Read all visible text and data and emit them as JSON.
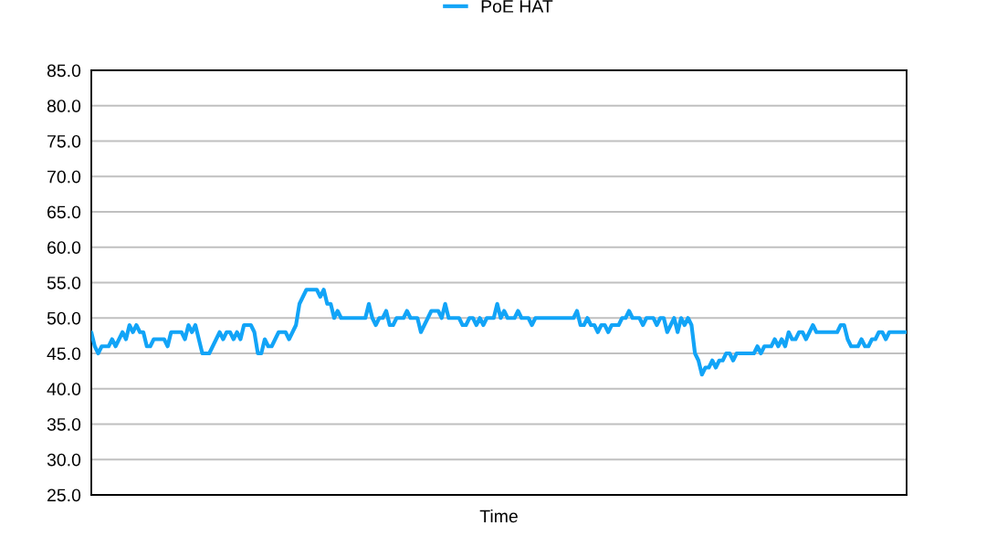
{
  "chart_data": {
    "type": "line",
    "xlabel": "Time",
    "categories": [
      null,
      null,
      null,
      null,
      null,
      null,
      null,
      null,
      null,
      null,
      null,
      null,
      null,
      null,
      null,
      null,
      null,
      null,
      null,
      null,
      null,
      null,
      null,
      null,
      null,
      null,
      null,
      null,
      null,
      null,
      null,
      null,
      null,
      null,
      null,
      null,
      null,
      null,
      null,
      null,
      null,
      null,
      null,
      null,
      null,
      null,
      null,
      null,
      null,
      null,
      null,
      null,
      null,
      null,
      null,
      null,
      null,
      null,
      null,
      null,
      null,
      null,
      null,
      null,
      null,
      null,
      null,
      null,
      null,
      null,
      null,
      null,
      null,
      null,
      null,
      null,
      null,
      null,
      null,
      null,
      null,
      null,
      null,
      null,
      null,
      null,
      null,
      null,
      null,
      null,
      null,
      null,
      null,
      null,
      null,
      null,
      null,
      null,
      null,
      null,
      null,
      null,
      null,
      null,
      null,
      null,
      null,
      null,
      null,
      null,
      null,
      null,
      null,
      null,
      null,
      null,
      null,
      null,
      null,
      null,
      null,
      null,
      null,
      null,
      null,
      null,
      null,
      null,
      null,
      null,
      null,
      null,
      null,
      null,
      null,
      null,
      null,
      null,
      null,
      null,
      null,
      null,
      null,
      null,
      null,
      null,
      null,
      null,
      null,
      null,
      null,
      null,
      null,
      null,
      null,
      null,
      null,
      null,
      null,
      null,
      null,
      null,
      null,
      null,
      null,
      null,
      null,
      null,
      null,
      null,
      null,
      null,
      null,
      null,
      null,
      null,
      null,
      null,
      null,
      null,
      null,
      null,
      null,
      null,
      null,
      null,
      null,
      null,
      null,
      null,
      null,
      null,
      null,
      null,
      null,
      null,
      null,
      null,
      null,
      null,
      null,
      null,
      null,
      null,
      null,
      null,
      null,
      null,
      null,
      null,
      null,
      null,
      null,
      null,
      null,
      null,
      null,
      null,
      null,
      null,
      null,
      null,
      null,
      null,
      null,
      null,
      null,
      null,
      null,
      null,
      null,
      null,
      null,
      null,
      null,
      null
    ],
    "series": [
      {
        "name": "PoE HAT",
        "color": "#12a4f7",
        "values": [
          48,
          46,
          45,
          46,
          46,
          46,
          47,
          46,
          47,
          48,
          47,
          49,
          48,
          49,
          48,
          48,
          46,
          46,
          47,
          47,
          47,
          47,
          46,
          48,
          48,
          48,
          48,
          47,
          49,
          48,
          49,
          47,
          45,
          45,
          45,
          46,
          47,
          48,
          47,
          48,
          48,
          47,
          48,
          47,
          49,
          49,
          49,
          48,
          45,
          45,
          47,
          46,
          46,
          47,
          48,
          48,
          48,
          47,
          48,
          49,
          52,
          53,
          54,
          54,
          54,
          54,
          53,
          54,
          52,
          52,
          50,
          51,
          50,
          50,
          50,
          50,
          50,
          50,
          50,
          50,
          52,
          50,
          49,
          50,
          50,
          51,
          49,
          49,
          50,
          50,
          50,
          51,
          50,
          50,
          50,
          48,
          49,
          50,
          51,
          51,
          51,
          50,
          52,
          50,
          50,
          50,
          50,
          49,
          49,
          50,
          50,
          49,
          50,
          49,
          50,
          50,
          50,
          52,
          50,
          51,
          50,
          50,
          50,
          51,
          50,
          50,
          50,
          49,
          50,
          50,
          50,
          50,
          50,
          50,
          50,
          50,
          50,
          50,
          50,
          50,
          51,
          49,
          49,
          50,
          49,
          49,
          48,
          49,
          49,
          48,
          49,
          49,
          49,
          50,
          50,
          51,
          50,
          50,
          50,
          49,
          50,
          50,
          50,
          49,
          50,
          50,
          48,
          49,
          50,
          48,
          50,
          49,
          50,
          49,
          45,
          44,
          42,
          43,
          43,
          44,
          43,
          44,
          44,
          45,
          45,
          44,
          45,
          45,
          45,
          45,
          45,
          45,
          46,
          45,
          46,
          46,
          46,
          47,
          46,
          47,
          46,
          48,
          47,
          47,
          48,
          48,
          47,
          48,
          49,
          48,
          48,
          48,
          48,
          48,
          48,
          48,
          49,
          49,
          47,
          46,
          46,
          46,
          47,
          46,
          46,
          47,
          47,
          48,
          48,
          47,
          48,
          48,
          48,
          48,
          48,
          48
        ]
      }
    ],
    "ylim": [
      25,
      85
    ],
    "yticks": [
      {
        "value": 25,
        "label": "25.0"
      },
      {
        "value": 30,
        "label": "30.0"
      },
      {
        "value": 35,
        "label": "35.0"
      },
      {
        "value": 40,
        "label": "40.0"
      },
      {
        "value": 45,
        "label": "45.0"
      },
      {
        "value": 50,
        "label": "50.0"
      },
      {
        "value": 55,
        "label": "55.0"
      },
      {
        "value": 60,
        "label": "60.0"
      },
      {
        "value": 65,
        "label": "65.0"
      },
      {
        "value": 70,
        "label": "70.0"
      },
      {
        "value": 75,
        "label": "75.0"
      },
      {
        "value": 80,
        "label": "80.0"
      },
      {
        "value": 85,
        "label": "85.0"
      }
    ],
    "grid": "y",
    "legend": "top",
    "marker": "none",
    "line_style": "solid"
  }
}
